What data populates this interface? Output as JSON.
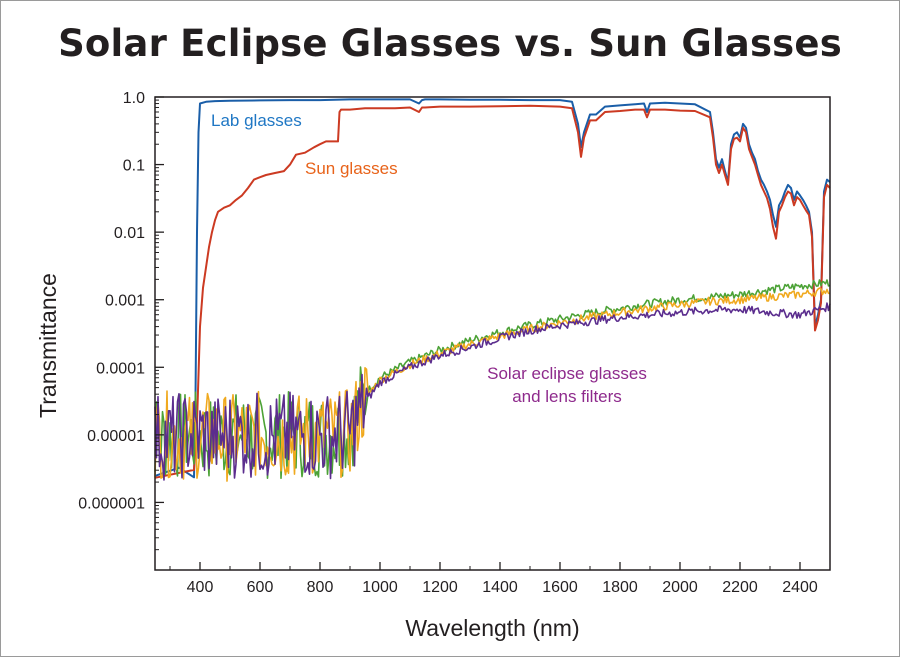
{
  "title": "Solar Eclipse Glasses vs. Sun Glasses",
  "chart_data": {
    "type": "line",
    "title": "Solar Eclipse Glasses vs. Sun Glasses",
    "xlabel": "Wavelength (nm)",
    "ylabel": "Transmittance",
    "x_scale": "linear",
    "y_scale": "log",
    "xlim": [
      250,
      2500
    ],
    "ylim": [
      1e-07,
      1.0
    ],
    "x_ticks": [
      400,
      600,
      800,
      1000,
      1200,
      1400,
      1600,
      1800,
      2000,
      2200,
      2400
    ],
    "x_tick_labels": [
      "400",
      "600",
      "800",
      "1000",
      "1200",
      "1400",
      "1600",
      "1800",
      "2000",
      "2200",
      "2400"
    ],
    "y_ticks": [
      1.0,
      0.1,
      0.01,
      0.001,
      0.0001,
      1e-05,
      1e-06
    ],
    "y_tick_labels": [
      "1.0",
      "0.1",
      "0.01",
      "0.001",
      "0.0001",
      "0.00001",
      "0.000001"
    ],
    "grid": false,
    "annotations": [
      {
        "text": "Lab glasses",
        "color": "#1f77c4"
      },
      {
        "text": "Sun glasses",
        "color": "#e8631a"
      },
      {
        "text": "Solar eclipse glasses",
        "color": "#8e2a8c"
      },
      {
        "text": "and lens filters",
        "color": "#8e2a8c"
      }
    ],
    "series": [
      {
        "color": "#1a5ea8",
        "x": [
          250,
          330,
          380,
          385,
          390,
          395,
          400,
          420,
          450,
          500,
          600,
          700,
          800,
          900,
          1000,
          1100,
          1130,
          1140,
          1150,
          1200,
          1300,
          1400,
          1500,
          1600,
          1640,
          1660,
          1670,
          1680,
          1700,
          1720,
          1750,
          1800,
          1850,
          1880,
          1890,
          1900,
          1950,
          2000,
          2050,
          2100,
          2110,
          2120,
          2130,
          2140,
          2150,
          2160,
          2170,
          2180,
          2190,
          2200,
          2210,
          2220,
          2230,
          2240,
          2250,
          2260,
          2270,
          2280,
          2290,
          2300,
          2310,
          2320,
          2330,
          2340,
          2350,
          2360,
          2370,
          2380,
          2390,
          2400,
          2410,
          2420,
          2430,
          2440,
          2450,
          2460,
          2470,
          2480,
          2490,
          2500
        ],
        "y": [
          2.5e-06,
          3e-06,
          4e-06,
          5e-05,
          0.01,
          0.3,
          0.8,
          0.85,
          0.87,
          0.88,
          0.89,
          0.9,
          0.9,
          0.92,
          0.92,
          0.92,
          0.8,
          0.9,
          0.92,
          0.92,
          0.91,
          0.91,
          0.9,
          0.9,
          0.85,
          0.4,
          0.18,
          0.3,
          0.55,
          0.55,
          0.72,
          0.75,
          0.78,
          0.8,
          0.6,
          0.8,
          0.82,
          0.8,
          0.78,
          0.6,
          0.3,
          0.12,
          0.09,
          0.12,
          0.08,
          0.055,
          0.2,
          0.28,
          0.3,
          0.25,
          0.4,
          0.35,
          0.2,
          0.15,
          0.12,
          0.08,
          0.06,
          0.05,
          0.04,
          0.03,
          0.018,
          0.012,
          0.025,
          0.03,
          0.04,
          0.05,
          0.045,
          0.03,
          0.04,
          0.035,
          0.03,
          0.025,
          0.02,
          0.01,
          0.0004,
          0.0006,
          0.001,
          0.04,
          0.06,
          0.055
        ]
      },
      {
        "color": "#cc3a22",
        "x": [
          250,
          380,
          390,
          400,
          410,
          420,
          430,
          440,
          450,
          460,
          480,
          500,
          520,
          540,
          560,
          580,
          600,
          620,
          650,
          680,
          700,
          720,
          750,
          780,
          800,
          820,
          850,
          860,
          865,
          870,
          900,
          950,
          1000,
          1050,
          1100,
          1130,
          1140,
          1150,
          1200,
          1300,
          1400,
          1500,
          1600,
          1640,
          1660,
          1670,
          1680,
          1700,
          1720,
          1750,
          1800,
          1850,
          1880,
          1890,
          1900,
          1950,
          2000,
          2050,
          2100,
          2110,
          2120,
          2130,
          2140,
          2150,
          2160,
          2170,
          2180,
          2190,
          2200,
          2210,
          2220,
          2230,
          2240,
          2250,
          2260,
          2270,
          2280,
          2290,
          2300,
          2310,
          2320,
          2330,
          2340,
          2350,
          2360,
          2370,
          2380,
          2390,
          2400,
          2410,
          2420,
          2430,
          2440,
          2450,
          2460,
          2470,
          2480,
          2490,
          2500
        ],
        "y": [
          2.5e-06,
          3e-06,
          1.5e-05,
          0.0004,
          0.0015,
          0.003,
          0.006,
          0.01,
          0.015,
          0.02,
          0.023,
          0.025,
          0.03,
          0.035,
          0.045,
          0.06,
          0.065,
          0.07,
          0.075,
          0.08,
          0.1,
          0.14,
          0.15,
          0.18,
          0.2,
          0.22,
          0.22,
          0.22,
          0.6,
          0.65,
          0.65,
          0.68,
          0.68,
          0.68,
          0.7,
          0.6,
          0.7,
          0.7,
          0.72,
          0.72,
          0.73,
          0.74,
          0.72,
          0.68,
          0.3,
          0.13,
          0.25,
          0.45,
          0.45,
          0.6,
          0.62,
          0.65,
          0.65,
          0.5,
          0.65,
          0.65,
          0.63,
          0.62,
          0.5,
          0.25,
          0.1,
          0.075,
          0.1,
          0.07,
          0.05,
          0.17,
          0.24,
          0.25,
          0.22,
          0.35,
          0.3,
          0.17,
          0.13,
          0.1,
          0.07,
          0.05,
          0.04,
          0.032,
          0.022,
          0.012,
          0.008,
          0.02,
          0.025,
          0.033,
          0.04,
          0.037,
          0.025,
          0.033,
          0.03,
          0.025,
          0.021,
          0.018,
          0.0085,
          0.00035,
          0.0005,
          0.0009,
          0.033,
          0.05,
          0.045
        ]
      },
      {
        "color": "#4ca236",
        "x": [
          250,
          300,
          350,
          400,
          450,
          500,
          550,
          600,
          650,
          700,
          750,
          800,
          850,
          900,
          950,
          1000,
          1100,
          1200,
          1300,
          1400,
          1500,
          1600,
          1700,
          1800,
          1900,
          2000,
          2100,
          2200,
          2300,
          2400,
          2500
        ],
        "y": [
          1e-05,
          9e-06,
          1e-05,
          1e-05,
          8e-06,
          1e-05,
          1e-05,
          9e-06,
          1e-05,
          1e-05,
          1e-05,
          1e-05,
          1e-05,
          1.2e-05,
          4e-05,
          7e-05,
          0.00012,
          0.00018,
          0.00025,
          0.00033,
          0.00042,
          0.00052,
          0.00063,
          0.00075,
          0.00088,
          0.001,
          0.0011,
          0.0012,
          0.0014,
          0.0016,
          0.0018
        ]
      },
      {
        "color": "#f0a91e",
        "x": [
          250,
          300,
          350,
          400,
          450,
          500,
          550,
          600,
          650,
          700,
          750,
          800,
          850,
          900,
          950,
          1000,
          1100,
          1200,
          1300,
          1400,
          1500,
          1600,
          1700,
          1800,
          1900,
          2000,
          2100,
          2200,
          2300,
          2400,
          2500
        ],
        "y": [
          1e-05,
          1e-05,
          9e-06,
          1e-05,
          1e-05,
          9e-06,
          1e-05,
          1e-05,
          1e-05,
          9e-06,
          1e-05,
          1e-05,
          1e-05,
          1.1e-05,
          3.5e-05,
          6.5e-05,
          0.00011,
          0.00016,
          0.00022,
          0.00029,
          0.00037,
          0.00046,
          0.00055,
          0.00065,
          0.00075,
          0.00085,
          0.00095,
          0.001,
          0.0011,
          0.0012,
          0.0014
        ]
      },
      {
        "color": "#5b2d8e",
        "x": [
          250,
          300,
          350,
          400,
          450,
          500,
          550,
          600,
          650,
          700,
          750,
          800,
          850,
          900,
          950,
          1000,
          1100,
          1200,
          1300,
          1400,
          1500,
          1600,
          1700,
          1800,
          1900,
          2000,
          2100,
          2200,
          2300,
          2400,
          2500
        ],
        "y": [
          1e-05,
          9e-06,
          1e-05,
          1e-05,
          9e-06,
          1e-05,
          1e-05,
          1e-05,
          9e-06,
          1e-05,
          1e-05,
          1e-05,
          1e-05,
          1.1e-05,
          3e-05,
          6e-05,
          0.0001,
          0.00015,
          0.0002,
          0.00027,
          0.00035,
          0.00042,
          0.00048,
          0.00055,
          0.0006,
          0.00065,
          0.0007,
          0.00072,
          0.00065,
          0.0006,
          0.0008
        ]
      }
    ]
  }
}
